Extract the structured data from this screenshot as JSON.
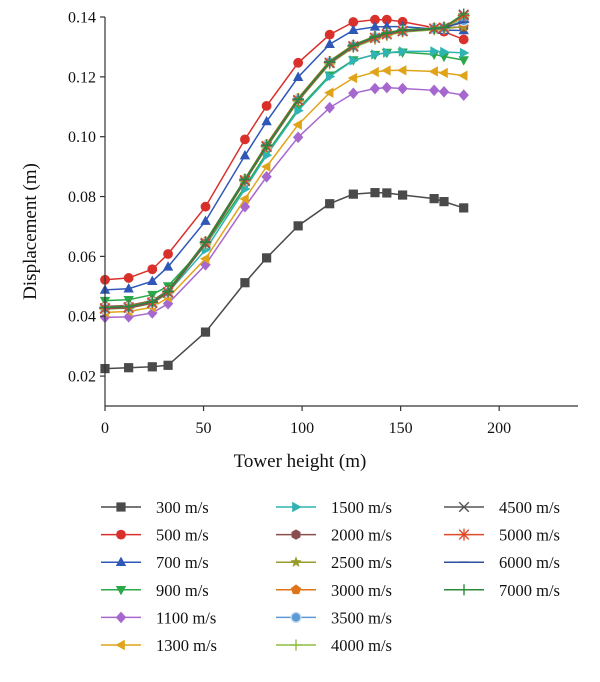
{
  "chart_data": {
    "type": "line",
    "xlabel": "Tower height (m)",
    "ylabel": "Displacement (m)",
    "xlim": [
      0,
      240
    ],
    "ylim": [
      0.01,
      0.14
    ],
    "x_ticks": [
      0,
      50,
      100,
      150,
      200
    ],
    "x_tick_labels": [
      "0",
      "50",
      "100",
      "150",
      "200"
    ],
    "y_ticks": [
      0.02,
      0.04,
      0.06,
      0.08,
      0.1,
      0.12,
      0.14
    ],
    "y_tick_labels": [
      "0.02",
      "0.04",
      "0.06",
      "0.08",
      "0.10",
      "0.12",
      "0.14"
    ],
    "grid": false,
    "legend_position": "bottom",
    "x": [
      0,
      12,
      24,
      32,
      51,
      71,
      82,
      98,
      114,
      126,
      137,
      143,
      151,
      167,
      172,
      182
    ],
    "series": [
      {
        "name": "300 m/s",
        "color": "#4a4a4a",
        "marker": "square",
        "values": [
          0.0225,
          0.0228,
          0.0231,
          0.0236,
          0.0347,
          0.0512,
          0.0595,
          0.0702,
          0.0776,
          0.0808,
          0.0813,
          0.0812,
          0.0805,
          0.0793,
          0.0783,
          0.0762
        ]
      },
      {
        "name": "500 m/s",
        "color": "#d9302b",
        "marker": "circle",
        "values": [
          0.0522,
          0.0528,
          0.0557,
          0.0608,
          0.0766,
          0.0991,
          0.1103,
          0.1247,
          0.1341,
          0.1383,
          0.1391,
          0.1391,
          0.1384,
          0.1364,
          0.1351,
          0.1325
        ]
      },
      {
        "name": "700 m/s",
        "color": "#2f57b8",
        "marker": "triangle-up",
        "values": [
          0.0488,
          0.0492,
          0.0517,
          0.0565,
          0.0718,
          0.0937,
          0.1051,
          0.1199,
          0.1309,
          0.1356,
          0.1367,
          0.1368,
          0.1368,
          0.136,
          0.1356,
          0.1355
        ]
      },
      {
        "name": "900 m/s",
        "color": "#2aa84a",
        "marker": "triangle-down",
        "values": [
          0.0452,
          0.0455,
          0.0472,
          0.0501,
          0.0637,
          0.0833,
          0.0945,
          0.1093,
          0.1205,
          0.1256,
          0.1274,
          0.1281,
          0.1282,
          0.1275,
          0.1268,
          0.1256
        ]
      },
      {
        "name": "1100 m/s",
        "color": "#a668cf",
        "marker": "diamond",
        "values": [
          0.0396,
          0.0398,
          0.0411,
          0.0442,
          0.0572,
          0.0766,
          0.0866,
          0.0998,
          0.1097,
          0.1145,
          0.1161,
          0.1164,
          0.1161,
          0.1155,
          0.115,
          0.1139
        ]
      },
      {
        "name": "1300 m/s",
        "color": "#e0a41a",
        "marker": "triangle-left",
        "values": [
          0.0413,
          0.0416,
          0.043,
          0.0462,
          0.0592,
          0.0792,
          0.09,
          0.104,
          0.1147,
          0.1196,
          0.1216,
          0.1221,
          0.1222,
          0.1218,
          0.1213,
          0.1204
        ]
      },
      {
        "name": "1500 m/s",
        "color": "#2fb3b3",
        "marker": "triangle-right",
        "values": [
          0.0427,
          0.043,
          0.0445,
          0.0479,
          0.0622,
          0.0825,
          0.0938,
          0.1087,
          0.1201,
          0.1255,
          0.1275,
          0.1281,
          0.1285,
          0.1285,
          0.1283,
          0.128
        ]
      },
      {
        "name": "2000 m/s",
        "color": "#8a4e4e",
        "marker": "hexagon",
        "values": [
          0.0433,
          0.0436,
          0.0452,
          0.0487,
          0.0648,
          0.0857,
          0.0972,
          0.1126,
          0.1251,
          0.1305,
          0.1333,
          0.1345,
          0.1355,
          0.1362,
          0.1364,
          0.1367
        ]
      },
      {
        "name": "2500 m/s",
        "color": "#9a9a2a",
        "marker": "star",
        "values": [
          0.0428,
          0.0431,
          0.0447,
          0.0482,
          0.0643,
          0.0852,
          0.0967,
          0.1121,
          0.1245,
          0.13,
          0.1329,
          0.1341,
          0.1352,
          0.1358,
          0.1362,
          0.1367
        ]
      },
      {
        "name": "3000 m/s",
        "color": "#e0741a",
        "marker": "pentagon",
        "values": [
          0.0431,
          0.0434,
          0.045,
          0.0485,
          0.065,
          0.0859,
          0.0975,
          0.1129,
          0.1253,
          0.1307,
          0.1336,
          0.1348,
          0.1357,
          0.1363,
          0.1367,
          0.1381
        ]
      },
      {
        "name": "3500 m/s",
        "color": "#5b9bd5",
        "marker": "circle-light",
        "values": [
          0.0426,
          0.0429,
          0.0445,
          0.048,
          0.0645,
          0.0854,
          0.097,
          0.1124,
          0.1249,
          0.1303,
          0.1332,
          0.1343,
          0.1353,
          0.1361,
          0.1364,
          0.1388
        ]
      },
      {
        "name": "4000 m/s",
        "color": "#8fbf3f",
        "marker": "plus",
        "values": [
          0.0424,
          0.0427,
          0.0443,
          0.0478,
          0.064,
          0.085,
          0.0964,
          0.1119,
          0.1243,
          0.1298,
          0.1326,
          0.1338,
          0.135,
          0.1357,
          0.136,
          0.14
        ]
      },
      {
        "name": "4500 m/s",
        "color": "#555555",
        "marker": "x",
        "values": [
          0.0425,
          0.0428,
          0.0444,
          0.0479,
          0.0642,
          0.0852,
          0.0966,
          0.1121,
          0.1246,
          0.1301,
          0.133,
          0.1342,
          0.1352,
          0.136,
          0.1363,
          0.1408
        ]
      },
      {
        "name": "5000 m/s",
        "color": "#e04a2a",
        "marker": "asterisk",
        "values": [
          0.0427,
          0.043,
          0.0446,
          0.0481,
          0.0646,
          0.0855,
          0.0969,
          0.1123,
          0.1248,
          0.1303,
          0.1331,
          0.1343,
          0.1354,
          0.1362,
          0.1365,
          0.1405
        ]
      },
      {
        "name": "6000 m/s",
        "color": "#2f4f9f",
        "marker": "dash",
        "values": [
          0.0429,
          0.0432,
          0.0448,
          0.0483,
          0.0648,
          0.0857,
          0.0971,
          0.1125,
          0.125,
          0.1305,
          0.1334,
          0.1346,
          0.1356,
          0.1361,
          0.1365,
          0.1383
        ]
      },
      {
        "name": "7000 m/s",
        "color": "#2a8a3a",
        "marker": "plus",
        "values": [
          0.043,
          0.0433,
          0.0449,
          0.0484,
          0.0649,
          0.0858,
          0.0972,
          0.1126,
          0.1251,
          0.1306,
          0.1335,
          0.1347,
          0.1357,
          0.1362,
          0.1366,
          0.141
        ]
      }
    ]
  }
}
